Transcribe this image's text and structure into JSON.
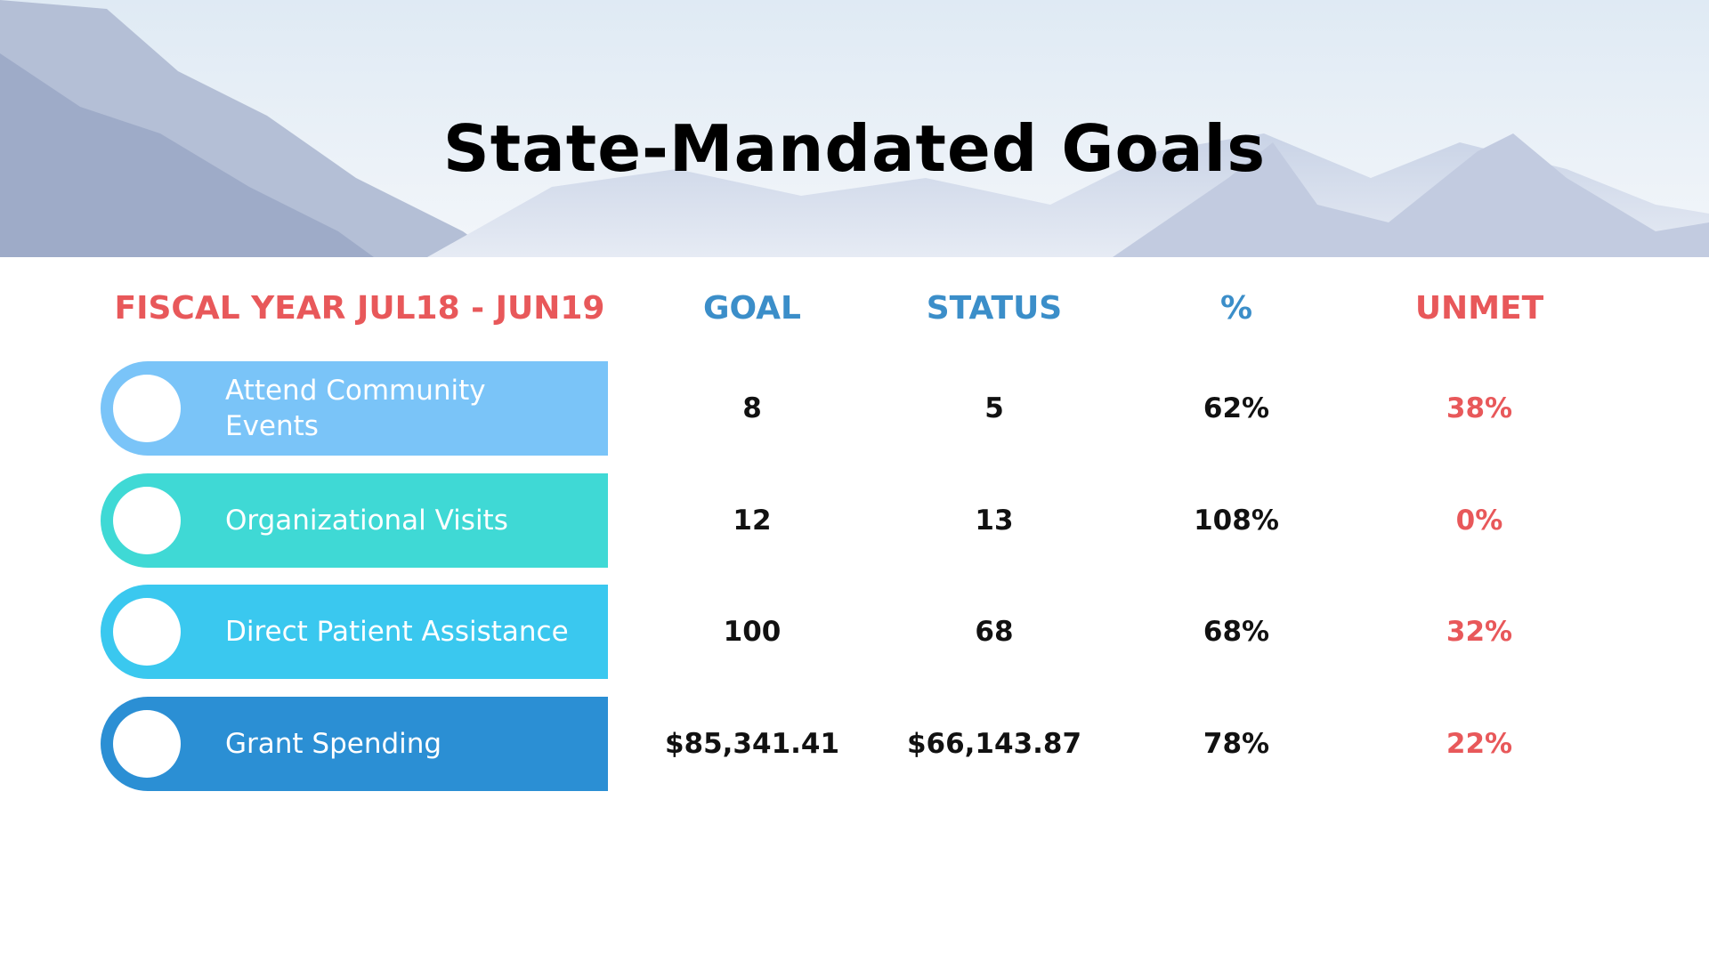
{
  "header": {
    "title": "State-Mandated Goals"
  },
  "table": {
    "columns": [
      "FISCAL YEAR JUL18 - JUN19",
      "GOAL",
      "STATUS",
      "%",
      "UNMET"
    ],
    "rows": [
      [
        "Attend Community Events",
        "8",
        "5",
        "62%",
        "38%"
      ],
      [
        "Organizational Visits",
        "12",
        "13",
        "108%",
        "0%"
      ],
      [
        "Direct Patient Assistance",
        "100",
        "68",
        "68%",
        "32%"
      ],
      [
        "Grant Spending",
        "$85,341.41",
        "$66,143.87",
        "78%",
        "22%"
      ]
    ]
  }
}
